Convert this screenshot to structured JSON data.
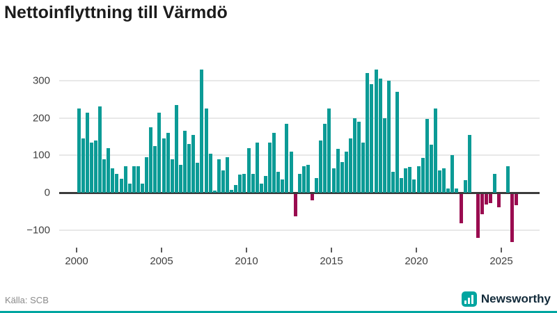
{
  "title": "Nettoinflyttning till Värmdö",
  "source": "Källa: SCB",
  "brand": {
    "name": "Newsworthy",
    "icon": "bar-chart-icon"
  },
  "colors": {
    "positive_bar": "#0c9b96",
    "negative_bar": "#9a0c50",
    "zero_line": "#3b3b3b",
    "gridline": "#e8e8e8",
    "brand_teal": "#00a5a0",
    "brand_text": "#122a3a"
  },
  "chart_data": {
    "type": "bar",
    "title": "Nettoinflyttning till Värmdö",
    "x_unit": "quarter",
    "start": "2000-Q1",
    "end": "2025-Q4",
    "x_tick_years": [
      2000,
      2005,
      2010,
      2015,
      2020,
      2025
    ],
    "y_ticks": [
      300,
      200,
      100,
      0,
      -100
    ],
    "ylim": [
      -145,
      350
    ],
    "grid": "horizontal-only",
    "legend": "none",
    "values": [
      225,
      145,
      215,
      135,
      140,
      230,
      90,
      120,
      65,
      50,
      37,
      70,
      25,
      70,
      70,
      25,
      95,
      175,
      125,
      215,
      145,
      160,
      90,
      235,
      75,
      165,
      130,
      155,
      80,
      330,
      225,
      105,
      5,
      90,
      60,
      95,
      8,
      20,
      48,
      50,
      120,
      50,
      135,
      25,
      45,
      135,
      160,
      55,
      35,
      185,
      110,
      -60,
      50,
      70,
      75,
      -18,
      40,
      140,
      185,
      225,
      65,
      118,
      82,
      110,
      145,
      200,
      190,
      135,
      320,
      290,
      330,
      305,
      200,
      300,
      55,
      270,
      40,
      65,
      68,
      36,
      70,
      93,
      197,
      128,
      225,
      60,
      65,
      12,
      100,
      12,
      -80,
      33,
      155,
      0,
      -118,
      -55,
      -28,
      -25,
      50,
      -37,
      0,
      70,
      -130,
      -30
    ]
  }
}
